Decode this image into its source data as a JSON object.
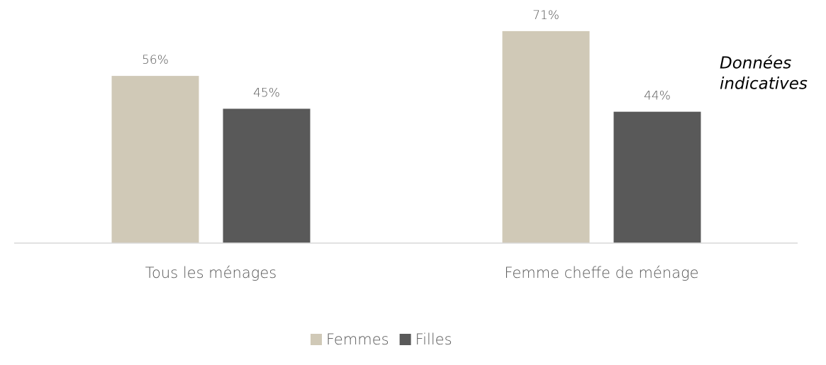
{
  "chart_data": {
    "type": "bar",
    "categories": [
      "Tous les ménages",
      "Femme cheffe de ménage"
    ],
    "series": [
      {
        "name": "Femmes",
        "color": "#d0c9b7",
        "values": [
          56,
          71
        ],
        "value_labels": [
          "56%",
          "71%"
        ]
      },
      {
        "name": "Filles",
        "color": "#595959",
        "values": [
          45,
          44
        ],
        "value_labels": [
          "45%",
          "44%"
        ]
      }
    ],
    "ylim": [
      0,
      80
    ],
    "grid": false,
    "legend": "bottom",
    "annotation": [
      "Données",
      "indicatives"
    ]
  }
}
